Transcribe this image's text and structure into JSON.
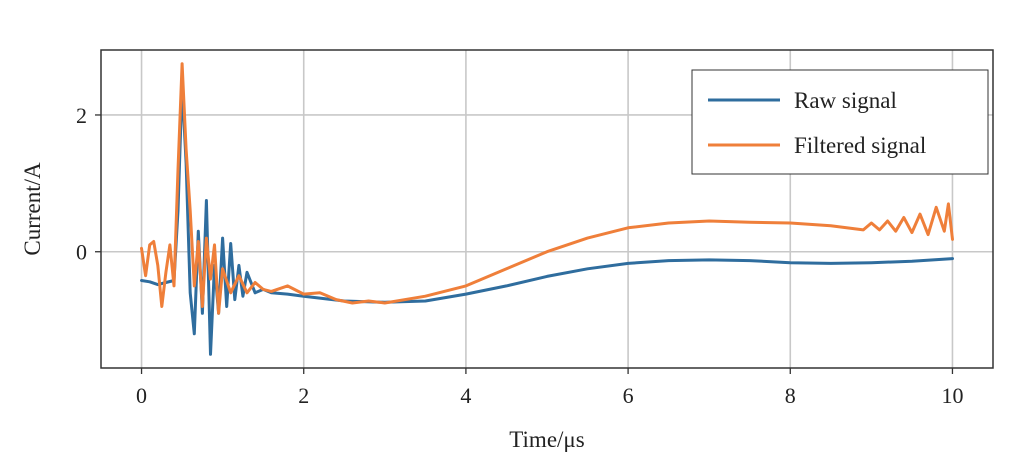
{
  "chart_data": {
    "type": "line",
    "title": "",
    "xlabel": "Time/μs",
    "ylabel": "Current/A",
    "xlim": [
      -0.5,
      10.5
    ],
    "ylim": [
      -1.7,
      2.95
    ],
    "xticks": [
      0,
      2,
      4,
      6,
      8,
      10
    ],
    "yticks": [
      0,
      2
    ],
    "grid": true,
    "legend_position": "top-right",
    "series": [
      {
        "name": "Raw signal",
        "color": "#2f6d9e",
        "x": [
          0,
          0.1,
          0.2,
          0.3,
          0.4,
          0.45,
          0.5,
          0.55,
          0.6,
          0.65,
          0.7,
          0.75,
          0.8,
          0.85,
          0.9,
          0.95,
          1.0,
          1.05,
          1.1,
          1.15,
          1.2,
          1.25,
          1.3,
          1.4,
          1.5,
          1.6,
          1.8,
          2.0,
          2.5,
          3.0,
          3.5,
          4.0,
          4.5,
          5.0,
          5.5,
          6.0,
          6.5,
          7.0,
          7.5,
          8.0,
          8.5,
          9.0,
          9.5,
          10.0
        ],
        "y": [
          -0.42,
          -0.44,
          -0.48,
          -0.45,
          -0.42,
          0.6,
          2.45,
          1.3,
          -0.6,
          -1.2,
          0.3,
          -0.9,
          0.75,
          -1.5,
          -0.2,
          -0.9,
          0.2,
          -0.8,
          0.12,
          -0.7,
          -0.2,
          -0.65,
          -0.3,
          -0.6,
          -0.55,
          -0.6,
          -0.62,
          -0.65,
          -0.72,
          -0.74,
          -0.72,
          -0.62,
          -0.5,
          -0.36,
          -0.25,
          -0.17,
          -0.13,
          -0.12,
          -0.13,
          -0.16,
          -0.17,
          -0.16,
          -0.14,
          -0.1
        ]
      },
      {
        "name": "Filtered signal",
        "color": "#ef7f3a",
        "x": [
          0,
          0.05,
          0.1,
          0.15,
          0.2,
          0.25,
          0.3,
          0.35,
          0.4,
          0.45,
          0.5,
          0.55,
          0.6,
          0.65,
          0.7,
          0.75,
          0.8,
          0.85,
          0.9,
          0.95,
          1.0,
          1.1,
          1.2,
          1.3,
          1.4,
          1.5,
          1.6,
          1.8,
          2.0,
          2.2,
          2.4,
          2.6,
          2.8,
          3.0,
          3.5,
          4.0,
          4.5,
          5.0,
          5.5,
          6.0,
          6.5,
          7.0,
          7.5,
          8.0,
          8.5,
          8.9,
          9.0,
          9.1,
          9.2,
          9.3,
          9.4,
          9.5,
          9.6,
          9.7,
          9.8,
          9.9,
          9.95,
          10.0
        ],
        "y": [
          0.05,
          -0.35,
          0.1,
          0.15,
          -0.2,
          -0.8,
          -0.3,
          0.1,
          -0.5,
          1.2,
          2.75,
          1.5,
          0.6,
          -0.5,
          0.15,
          -0.8,
          0.2,
          -0.4,
          0.1,
          -0.9,
          -0.25,
          -0.6,
          -0.35,
          -0.6,
          -0.45,
          -0.55,
          -0.58,
          -0.5,
          -0.62,
          -0.6,
          -0.7,
          -0.75,
          -0.72,
          -0.75,
          -0.65,
          -0.5,
          -0.25,
          0.0,
          0.2,
          0.35,
          0.42,
          0.45,
          0.43,
          0.42,
          0.38,
          0.32,
          0.42,
          0.32,
          0.45,
          0.3,
          0.5,
          0.28,
          0.55,
          0.25,
          0.65,
          0.3,
          0.7,
          0.18
        ]
      }
    ]
  }
}
